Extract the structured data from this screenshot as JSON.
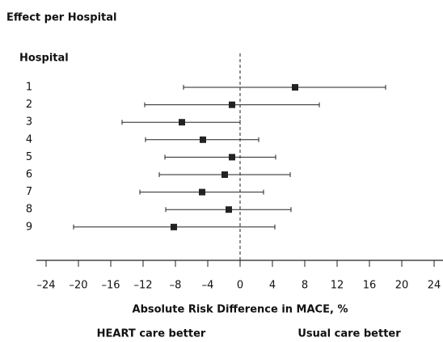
{
  "chart_data": {
    "type": "forest",
    "title": "Effect per Hospital",
    "y_label": "Hospital",
    "x_label": "Absolute Risk Difference in MACE, %",
    "annotations": [
      "HEART care better",
      "Usual care better"
    ],
    "categories": [
      "1",
      "2",
      "3",
      "4",
      "5",
      "6",
      "7",
      "8",
      "9"
    ],
    "series": [
      {
        "color": "#222222",
        "values": [
          6.8,
          -1,
          -7.2,
          -4.6,
          -1,
          -1.9,
          -4.7,
          -1.4,
          -8.2
        ],
        "lower": [
          -7,
          -11.8,
          -14.6,
          -11.7,
          -9.3,
          -10,
          -12.4,
          -9.2,
          -20.6
        ],
        "upper": [
          18,
          9.8,
          0,
          2.3,
          4.4,
          6.2,
          2.9,
          6.3,
          4.3
        ]
      }
    ],
    "xlim": [
      -25.2,
      25.1
    ],
    "xticks": [
      {
        "value": -24,
        "label": "–24"
      },
      {
        "value": -20,
        "label": "–20"
      },
      {
        "value": -16,
        "label": "–16"
      },
      {
        "value": -12,
        "label": "–12"
      },
      {
        "value": -8,
        "label": "–8"
      },
      {
        "value": -4,
        "label": "–4"
      },
      0,
      4,
      8,
      12,
      16,
      20,
      24
    ]
  }
}
